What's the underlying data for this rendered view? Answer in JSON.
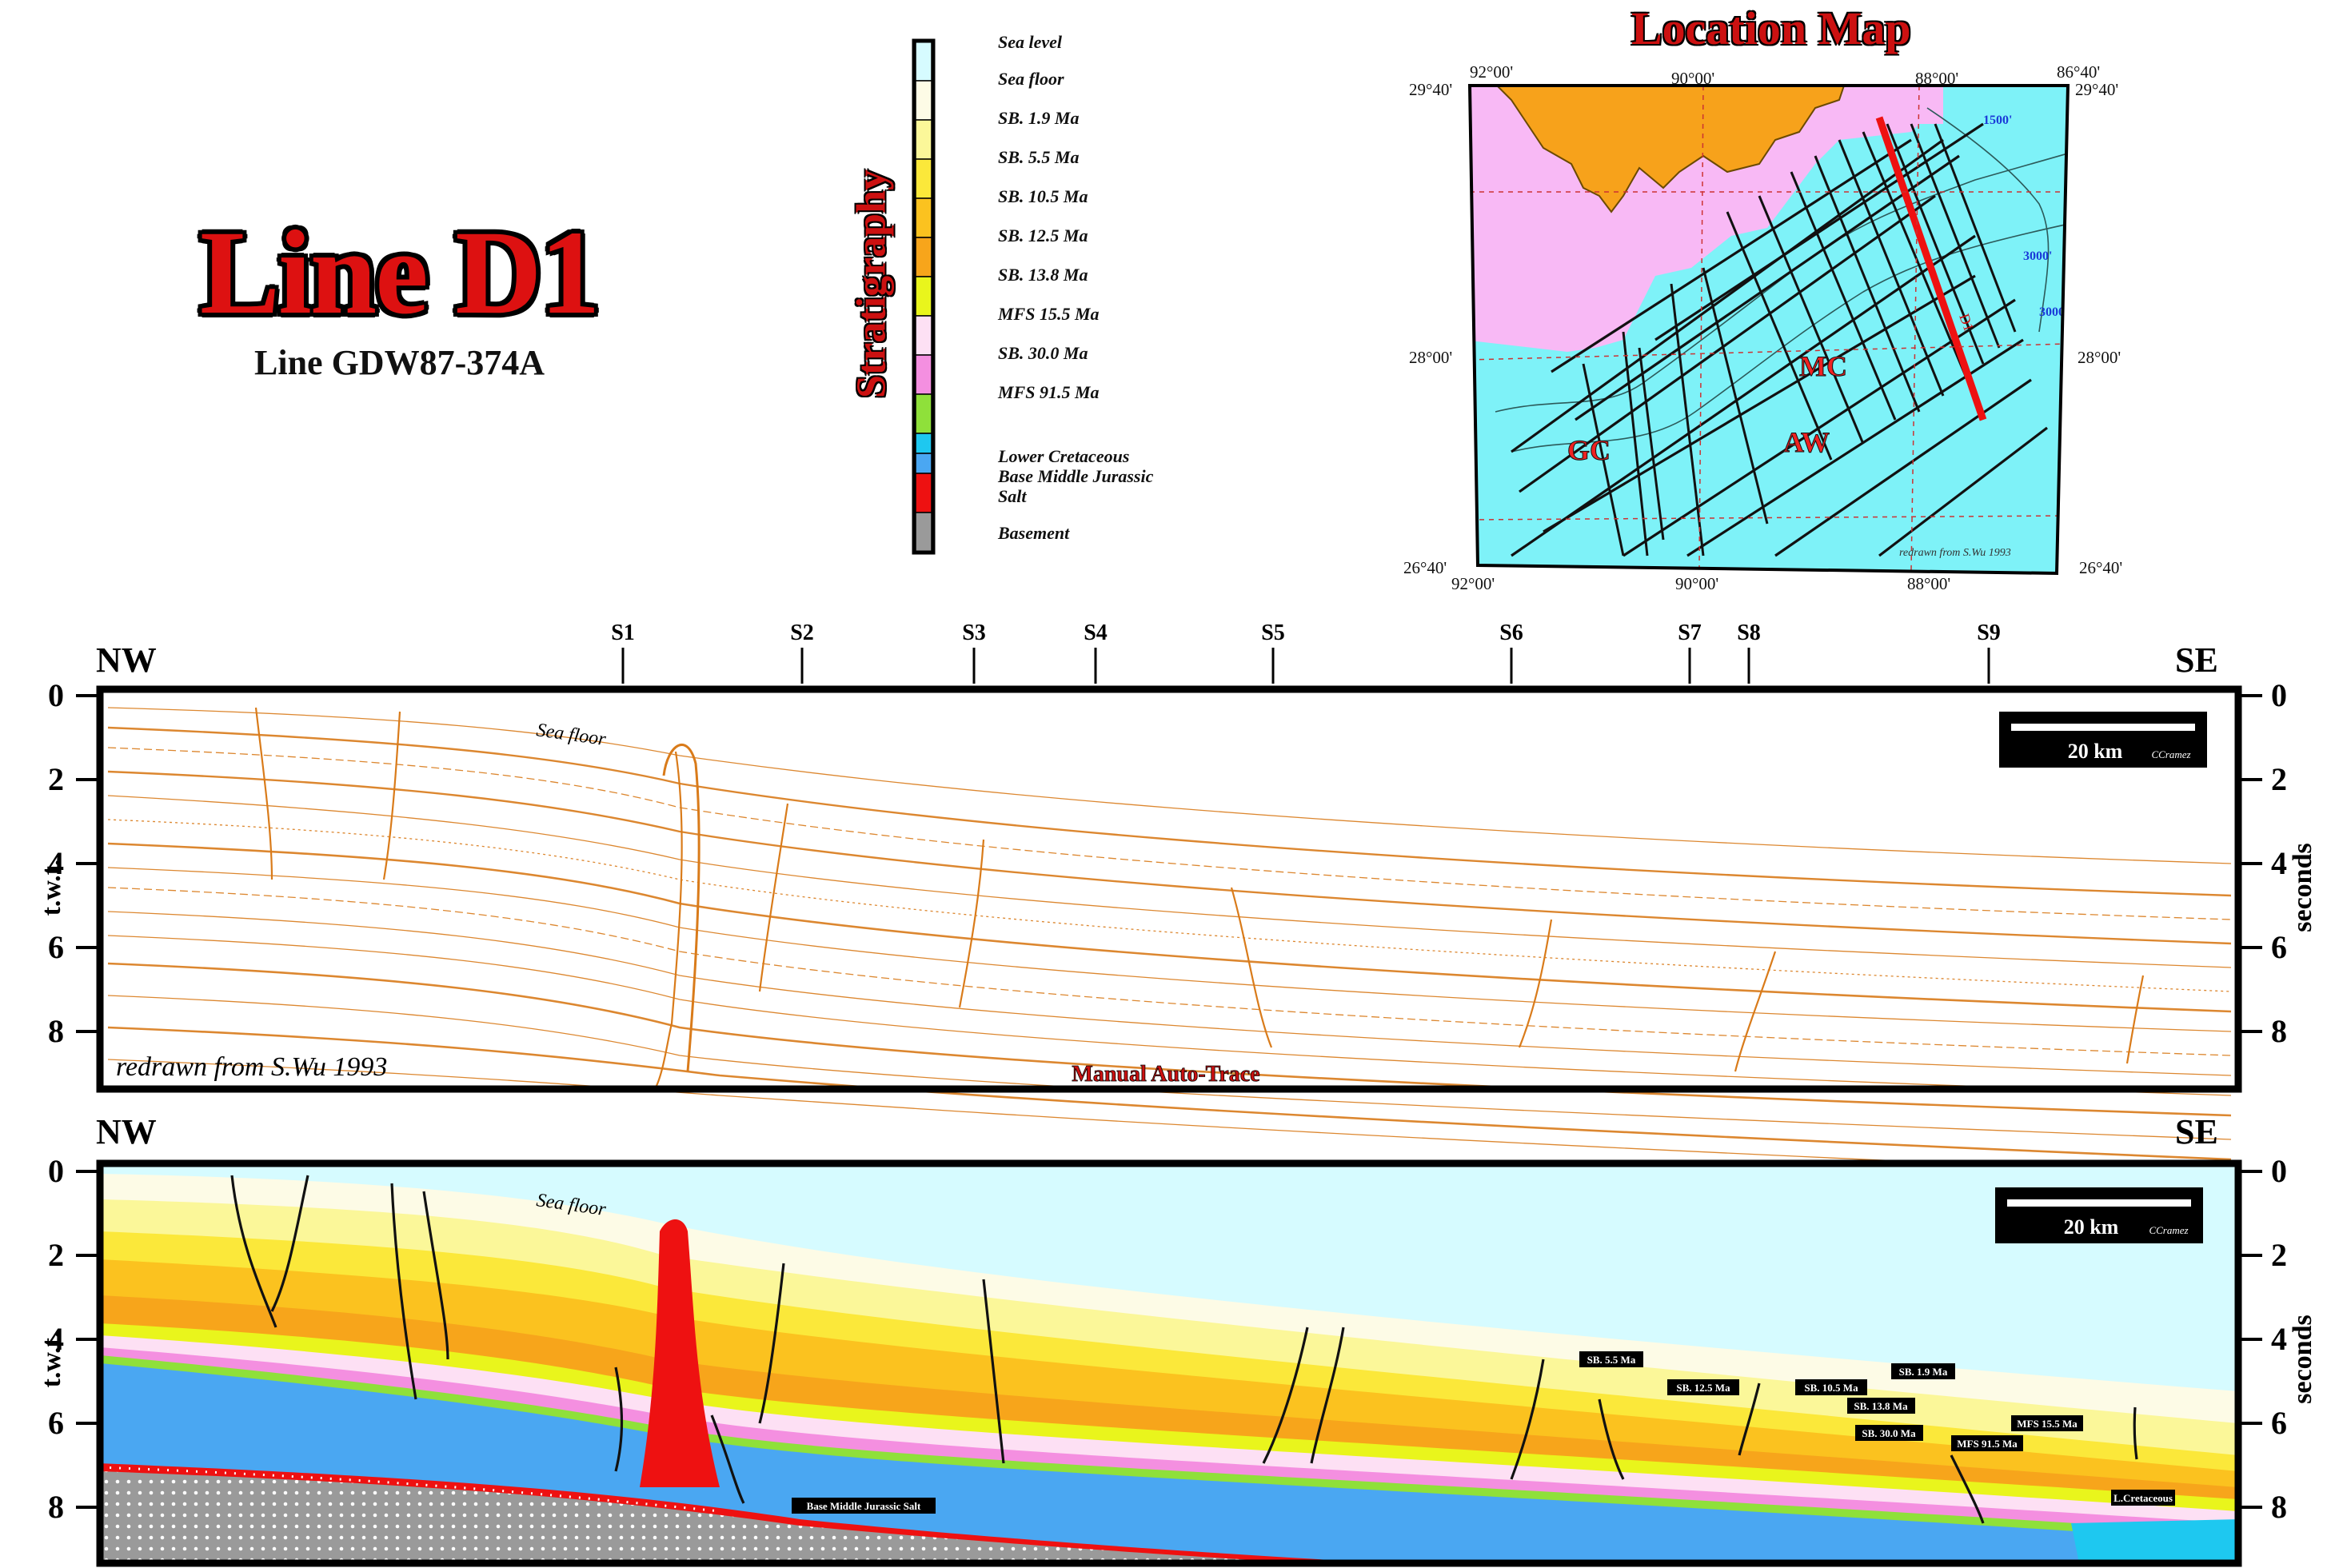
{
  "header": {
    "title": "Line D1",
    "subtitle": "Line GDW87-374A"
  },
  "stratigraphy": {
    "title": "Stratigraphy",
    "units": [
      {
        "label": "Sea level",
        "color": "#d6fbff"
      },
      {
        "label": "Sea floor",
        "color": "#fdfbe6"
      },
      {
        "label": "SB. 1.9 Ma",
        "color": "#fbf799"
      },
      {
        "label": "SB. 5.5 Ma",
        "color": "#fbe83a"
      },
      {
        "label": "SB. 10.5 Ma",
        "color": "#fbc21f"
      },
      {
        "label": "SB. 12.5 Ma",
        "color": "#f7a51b"
      },
      {
        "label": "SB. 13.8 Ma",
        "color": "#e9f51c"
      },
      {
        "label": "MFS 15.5 Ma",
        "color": "#fde0f4"
      },
      {
        "label": "SB. 30.0 Ma",
        "color": "#f48fe0"
      },
      {
        "label": "MFS 91.5 Ma",
        "color": "#8fe03a"
      },
      {
        "label": "Lower Cretaceous",
        "color": "#1ec8f0"
      },
      {
        "label": "Base Middle Jurassic",
        "color": "#4aa7f2"
      },
      {
        "label": "Salt",
        "color": "#ee1111"
      },
      {
        "label": "Basement",
        "color": "#9a9a9a"
      }
    ]
  },
  "location_map": {
    "title": "Location Map",
    "corners": {
      "top_left_lat": "29°40'",
      "top_right_lat": "29°40'",
      "bottom_left_lat": "26°40'",
      "bottom_right_lat": "26°40'",
      "mid_left_lat": "28°00'",
      "mid_right_lat": "28°00'"
    },
    "top_lon": [
      "92°00'",
      "90°00'",
      "88°00'",
      "86°40'"
    ],
    "bottom_lon": [
      "92°00'",
      "90°00'",
      "88°00'"
    ],
    "areas": [
      "MC",
      "GC",
      "AW"
    ],
    "credit": "redrawn from S.Wu 1993",
    "line_label": "D1"
  },
  "sections": {
    "left_end": "NW",
    "right_end": "SE",
    "left_axis_label": "t.w.t.",
    "right_axis_label": "seconds",
    "ticks": [
      "0",
      "2",
      "4",
      "6",
      "8"
    ],
    "stations": [
      "S1",
      "S2",
      "S3",
      "S4",
      "S5",
      "S6",
      "S7",
      "S8",
      "S9"
    ],
    "scale_bar": "20 km",
    "scale_credit": "CCramez",
    "sea_floor_label": "Sea floor",
    "top_panel_credit": "redrawn from S.Wu 1993",
    "top_panel_caption": "Manual Auto-Trace",
    "lower_labels": [
      "SB. 5.5 Ma",
      "SB. 12.5 Ma",
      "SB. 10.5 Ma",
      "SB. 1.9 Ma",
      "SB. 13.8 Ma",
      "SB. 30.0 Ma",
      "MFS 15.5 Ma",
      "MFS 91.5 Ma",
      "L.Cretaceous",
      "Base Middle Jurassic Salt"
    ]
  }
}
